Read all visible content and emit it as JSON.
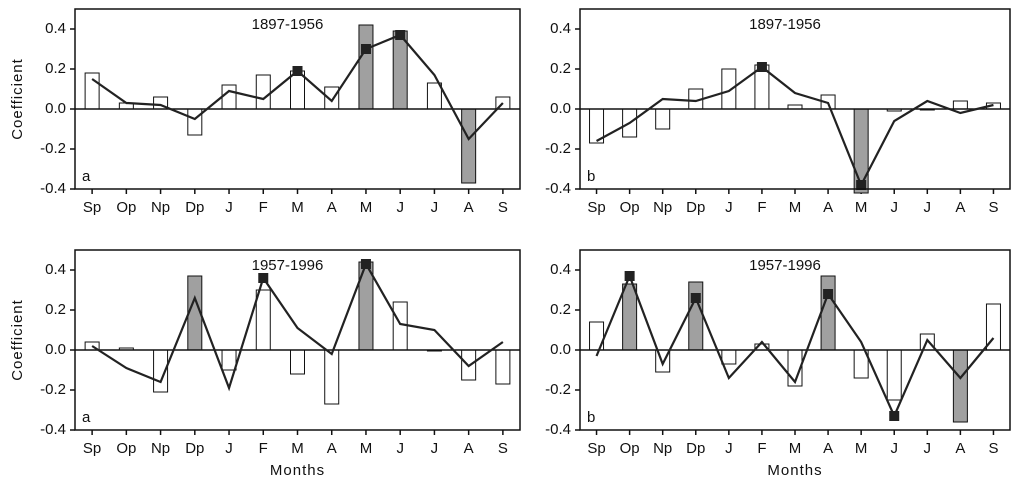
{
  "chart_data": [
    {
      "type": "bar_line",
      "title": "1897-1956",
      "ylabel": "Coefficient",
      "panel_label": "a",
      "categories": [
        "Sp",
        "Op",
        "Np",
        "Dp",
        "J",
        "F",
        "M",
        "A",
        "M",
        "J",
        "J",
        "A",
        "S"
      ],
      "bars": {
        "values": [
          0.18,
          0.03,
          0.06,
          -0.13,
          0.12,
          0.17,
          0.19,
          0.11,
          0.42,
          0.39,
          0.13,
          -0.37,
          0.06
        ],
        "colors": [
          "#ffffff",
          "#ffffff",
          "#ffffff",
          "#ffffff",
          "#ffffff",
          "#ffffff",
          "#ffffff",
          "#ffffff",
          "#a0a0a0",
          "#a0a0a0",
          "#ffffff",
          "#a0a0a0",
          "#ffffff"
        ]
      },
      "line": {
        "color": "#222222",
        "values": [
          0.15,
          0.03,
          0.02,
          -0.05,
          0.09,
          0.05,
          0.19,
          0.04,
          0.3,
          0.37,
          0.17,
          -0.15,
          0.03
        ],
        "markers": [
          false,
          false,
          false,
          false,
          false,
          false,
          true,
          false,
          true,
          true,
          false,
          false,
          false
        ]
      },
      "ylim": [
        -0.4,
        0.5
      ],
      "yticks": [
        -0.4,
        -0.2,
        {
          "value": 0,
          "label": "0.0"
        },
        0.2,
        0.4
      ]
    },
    {
      "type": "bar_line",
      "title": "1897-1956",
      "panel_label": "b",
      "categories": [
        "Sp",
        "Op",
        "Np",
        "Dp",
        "J",
        "F",
        "M",
        "A",
        "M",
        "J",
        "J",
        "A",
        "S"
      ],
      "bars": {
        "values": [
          -0.17,
          -0.14,
          -0.1,
          0.1,
          0.2,
          0.22,
          0.02,
          0.07,
          -0.42,
          -0.01,
          0.0,
          0.04,
          0.03
        ],
        "colors": [
          "#ffffff",
          "#ffffff",
          "#ffffff",
          "#ffffff",
          "#ffffff",
          "#ffffff",
          "#ffffff",
          "#ffffff",
          "#a0a0a0",
          "#ffffff",
          "#ffffff",
          "#ffffff",
          "#ffffff"
        ]
      },
      "line": {
        "color": "#222222",
        "values": [
          -0.16,
          -0.07,
          0.05,
          0.04,
          0.09,
          0.21,
          0.08,
          0.03,
          -0.38,
          -0.06,
          0.04,
          -0.02,
          0.02
        ],
        "markers": [
          false,
          false,
          false,
          false,
          false,
          true,
          false,
          false,
          true,
          false,
          false,
          false,
          false
        ]
      },
      "ylim": [
        -0.4,
        0.5
      ],
      "yticks": [
        -0.4,
        -0.2,
        {
          "value": 0,
          "label": "0.0"
        },
        0.2,
        0.4
      ]
    },
    {
      "type": "bar_line",
      "title": "1957-1996",
      "ylabel": "Coefficient",
      "xlabel": "Months",
      "panel_label": "a",
      "categories": [
        "Sp",
        "Op",
        "Np",
        "Dp",
        "J",
        "F",
        "M",
        "A",
        "M",
        "J",
        "J",
        "A",
        "S"
      ],
      "bars": {
        "values": [
          0.04,
          0.01,
          -0.21,
          0.37,
          -0.1,
          0.3,
          -0.12,
          -0.27,
          0.44,
          0.24,
          0.0,
          -0.15,
          -0.17
        ],
        "colors": [
          "#ffffff",
          "#ffffff",
          "#ffffff",
          "#a0a0a0",
          "#ffffff",
          "#ffffff",
          "#ffffff",
          "#ffffff",
          "#a0a0a0",
          "#ffffff",
          "#ffffff",
          "#ffffff",
          "#ffffff"
        ]
      },
      "line": {
        "color": "#222222",
        "values": [
          0.02,
          -0.09,
          -0.16,
          0.26,
          -0.19,
          0.36,
          0.11,
          -0.02,
          0.43,
          0.13,
          0.1,
          -0.08,
          0.04
        ],
        "markers": [
          false,
          false,
          false,
          false,
          false,
          true,
          false,
          false,
          true,
          false,
          false,
          false,
          false
        ]
      },
      "ylim": [
        -0.4,
        0.5
      ],
      "yticks": [
        -0.4,
        -0.2,
        {
          "value": 0,
          "label": "0.0"
        },
        0.2,
        0.4
      ]
    },
    {
      "type": "bar_line",
      "title": "1957-1996",
      "xlabel": "Months",
      "panel_label": "b",
      "categories": [
        "Sp",
        "Op",
        "Np",
        "Dp",
        "J",
        "F",
        "M",
        "A",
        "M",
        "J",
        "J",
        "A",
        "S"
      ],
      "bars": {
        "values": [
          0.14,
          0.33,
          -0.11,
          0.34,
          -0.07,
          0.03,
          -0.18,
          0.37,
          -0.14,
          -0.25,
          0.08,
          -0.36,
          0.23
        ],
        "colors": [
          "#ffffff",
          "#a0a0a0",
          "#ffffff",
          "#a0a0a0",
          "#ffffff",
          "#ffffff",
          "#ffffff",
          "#a0a0a0",
          "#ffffff",
          "#ffffff",
          "#ffffff",
          "#a0a0a0",
          "#ffffff"
        ]
      },
      "line": {
        "color": "#222222",
        "values": [
          -0.03,
          0.37,
          -0.07,
          0.26,
          -0.14,
          0.04,
          -0.16,
          0.28,
          0.04,
          -0.33,
          0.05,
          -0.14,
          0.06
        ],
        "markers": [
          false,
          true,
          false,
          true,
          false,
          false,
          false,
          true,
          false,
          true,
          false,
          false,
          false
        ]
      },
      "ylim": [
        -0.4,
        0.5
      ],
      "yticks": [
        -0.4,
        -0.2,
        {
          "value": 0,
          "label": "0.0"
        },
        0.2,
        0.4
      ]
    }
  ]
}
